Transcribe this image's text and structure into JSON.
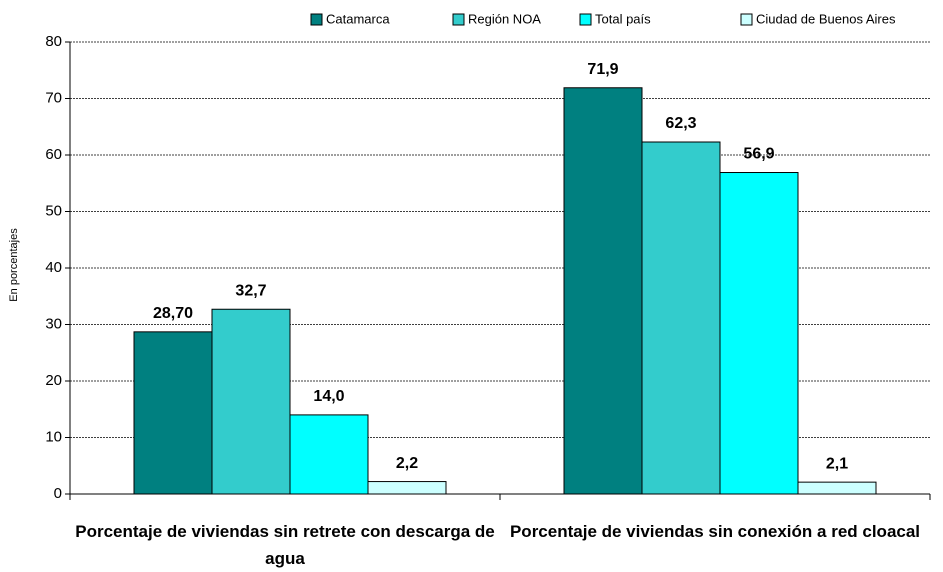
{
  "chart_data": {
    "type": "bar",
    "y_label": "En porcentajes",
    "categories": [
      "Porcentaje de viviendas sin retrete con descarga de agua",
      "Porcentaje de viviendas sin conexión a red cloacal"
    ],
    "series": [
      {
        "name": "Catamarca",
        "color": "#008080",
        "values": [
          28.7,
          71.9
        ],
        "value_labels": [
          "28,70",
          "71,9"
        ]
      },
      {
        "name": "Región NOA",
        "color": "#33cccc",
        "values": [
          32.7,
          62.3
        ],
        "value_labels": [
          "32,7",
          "62,3"
        ]
      },
      {
        "name": "Total país",
        "color": "#00ffff",
        "values": [
          14.0,
          56.9
        ],
        "value_labels": [
          "14,0",
          "56,9"
        ]
      },
      {
        "name": "Ciudad de Buenos Aires",
        "color": "#ccffff",
        "values": [
          2.2,
          2.1
        ],
        "value_labels": [
          "2,2",
          "2,1"
        ]
      }
    ],
    "ylim": [
      0,
      80
    ],
    "yticks": [
      0,
      10,
      20,
      30,
      40,
      50,
      60,
      70,
      80
    ],
    "grid": true,
    "legend": "top"
  }
}
